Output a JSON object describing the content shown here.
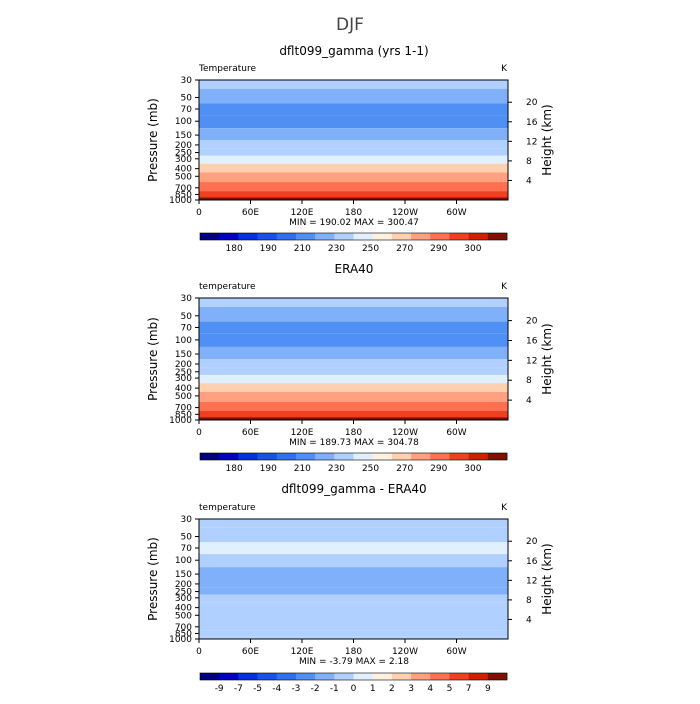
{
  "figure": {
    "title": "DJF"
  },
  "chart_data": [
    {
      "type": "heatmap",
      "title": "dflt099_gamma (yrs 1-1)",
      "variable_label": "Temperature",
      "unit": "K",
      "xlabel": "",
      "ylabel": "Pressure (mb)",
      "ylabel_right": "Height (km)",
      "x_ticks": [
        "0",
        "60E",
        "120E",
        "180",
        "120W",
        "60W"
      ],
      "y_ticks": [
        "30",
        "50",
        "70",
        "100",
        "150",
        "200",
        "250",
        "300",
        "400",
        "500",
        "700",
        "850",
        "1000"
      ],
      "height_ticks": [
        "20",
        "16",
        "12",
        "8",
        "4"
      ],
      "stats": {
        "min_label": "MIN =",
        "min": "190.02",
        "max_label": "MAX =",
        "max": "300.47"
      },
      "colorbar_labels": [
        "180",
        "190",
        "210",
        "230",
        "250",
        "270",
        "290",
        "300"
      ],
      "colorbar_levels": [
        175,
        180,
        185,
        190,
        200,
        210,
        220,
        230,
        240,
        250,
        260,
        270,
        280,
        290,
        295,
        300
      ],
      "profile": [
        {
          "p": 30,
          "t": 222
        },
        {
          "p": 50,
          "t": 215
        },
        {
          "p": 70,
          "t": 208
        },
        {
          "p": 100,
          "t": 205
        },
        {
          "p": 150,
          "t": 210
        },
        {
          "p": 200,
          "t": 220
        },
        {
          "p": 250,
          "t": 228
        },
        {
          "p": 300,
          "t": 235
        },
        {
          "p": 400,
          "t": 250
        },
        {
          "p": 500,
          "t": 260
        },
        {
          "p": 700,
          "t": 275
        },
        {
          "p": 850,
          "t": 285
        },
        {
          "p": 1000,
          "t": 295
        }
      ]
    },
    {
      "type": "heatmap",
      "title": "ERA40",
      "variable_label": "temperature",
      "unit": "K",
      "xlabel": "",
      "ylabel": "Pressure (mb)",
      "ylabel_right": "Height (km)",
      "x_ticks": [
        "0",
        "60E",
        "120E",
        "180",
        "120W",
        "60W"
      ],
      "y_ticks": [
        "30",
        "50",
        "70",
        "100",
        "150",
        "200",
        "250",
        "300",
        "400",
        "500",
        "700",
        "850",
        "1000"
      ],
      "height_ticks": [
        "20",
        "16",
        "12",
        "8",
        "4"
      ],
      "stats": {
        "min_label": "MIN =",
        "min": "189.73",
        "max_label": "MAX =",
        "max": "304.78"
      },
      "colorbar_labels": [
        "180",
        "190",
        "210",
        "230",
        "250",
        "270",
        "290",
        "300"
      ],
      "colorbar_levels": [
        175,
        180,
        185,
        190,
        200,
        210,
        220,
        230,
        240,
        250,
        260,
        270,
        280,
        290,
        295,
        300
      ],
      "profile": [
        {
          "p": 30,
          "t": 220
        },
        {
          "p": 50,
          "t": 214
        },
        {
          "p": 70,
          "t": 208
        },
        {
          "p": 100,
          "t": 205
        },
        {
          "p": 150,
          "t": 212
        },
        {
          "p": 200,
          "t": 220
        },
        {
          "p": 250,
          "t": 228
        },
        {
          "p": 300,
          "t": 236
        },
        {
          "p": 400,
          "t": 250
        },
        {
          "p": 500,
          "t": 260
        },
        {
          "p": 700,
          "t": 276
        },
        {
          "p": 850,
          "t": 286
        },
        {
          "p": 1000,
          "t": 297
        }
      ]
    },
    {
      "type": "heatmap",
      "title": "dflt099_gamma - ERA40",
      "variable_label": "temperature",
      "unit": "K",
      "xlabel": "",
      "ylabel": "Pressure (mb)",
      "ylabel_right": "Height (km)",
      "x_ticks": [
        "0",
        "60E",
        "120E",
        "180",
        "120W",
        "60W"
      ],
      "y_ticks": [
        "30",
        "50",
        "70",
        "100",
        "150",
        "200",
        "250",
        "300",
        "400",
        "500",
        "700",
        "850",
        "1000"
      ],
      "height_ticks": [
        "20",
        "16",
        "12",
        "8",
        "4"
      ],
      "stats": {
        "min_label": "MIN =",
        "min": "-3.79",
        "max_label": "MAX =",
        "max": "2.18"
      },
      "colorbar_labels": [
        "-9",
        "-7",
        "-5",
        "-4",
        "-3",
        "-2",
        "-1",
        "0",
        "1",
        "2",
        "3",
        "4",
        "5",
        "7",
        "9"
      ],
      "colorbar_levels": [
        -9,
        -7,
        -5,
        -4,
        -3,
        -2,
        -1,
        0,
        1,
        2,
        3,
        4,
        5,
        7,
        9
      ],
      "profile": [
        {
          "p": 30,
          "t": -0.5
        },
        {
          "p": 50,
          "t": -0.3
        },
        {
          "p": 70,
          "t": 0.5
        },
        {
          "p": 100,
          "t": -0.2
        },
        {
          "p": 150,
          "t": -1.5
        },
        {
          "p": 200,
          "t": -1.5
        },
        {
          "p": 250,
          "t": -1.2
        },
        {
          "p": 300,
          "t": -1.0
        },
        {
          "p": 400,
          "t": -0.8
        },
        {
          "p": 500,
          "t": -0.6
        },
        {
          "p": 700,
          "t": -0.5
        },
        {
          "p": 850,
          "t": -0.7
        },
        {
          "p": 1000,
          "t": -0.6
        }
      ]
    }
  ],
  "colors": {
    "palette": [
      "#000080",
      "#0000c0",
      "#0030e0",
      "#1850e8",
      "#3070f0",
      "#5090f5",
      "#80b0fa",
      "#b0d0ff",
      "#e0f0ff",
      "#fff0e0",
      "#ffd0b0",
      "#ffa080",
      "#ff7050",
      "#f04020",
      "#d02000",
      "#801000"
    ]
  }
}
